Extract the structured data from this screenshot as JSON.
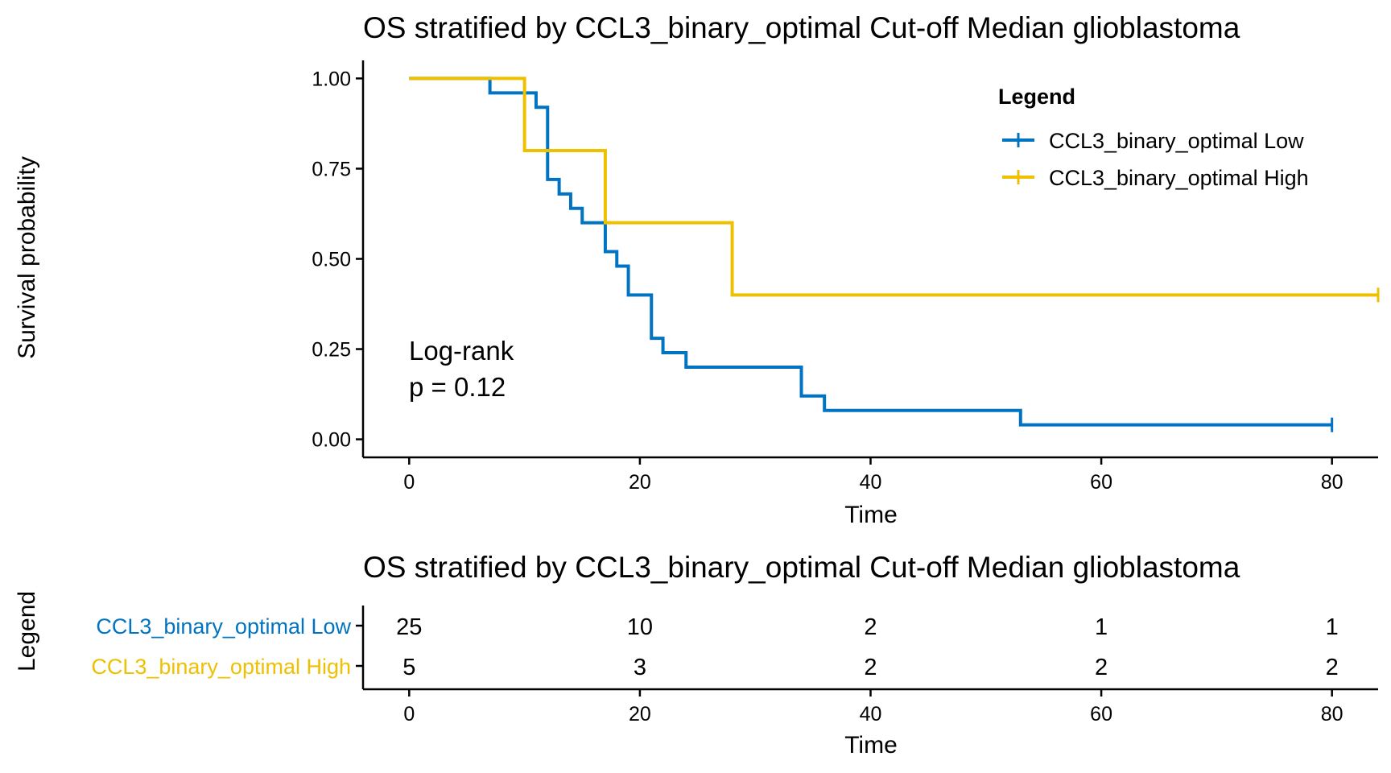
{
  "chart_data": [
    {
      "type": "line",
      "subtype": "kaplan-meier",
      "title": "OS stratified by CCL3_binary_optimal Cut-off Median glioblastoma",
      "xlabel": "Time",
      "ylabel": "Survival probability",
      "xlim": [
        -4,
        84
      ],
      "ylim": [
        -0.05,
        1.05
      ],
      "xticks": [
        0,
        20,
        40,
        60,
        80
      ],
      "yticks": [
        0,
        0.25,
        0.5,
        0.75,
        1.0
      ],
      "ytick_labels": [
        "0.00",
        "0.25",
        "0.50",
        "0.75",
        "1.00"
      ],
      "grid": false,
      "legend": {
        "title": "Legend",
        "placement": "top-right"
      },
      "annotation": [
        "Log-rank",
        "p = 0.12"
      ],
      "series": [
        {
          "name": "CCL3_binary_optimal Low",
          "color": "#0073C2",
          "steps": [
            [
              0,
              1.0
            ],
            [
              7,
              0.96
            ],
            [
              11,
              0.92
            ],
            [
              12,
              0.8
            ],
            [
              12,
              0.72
            ],
            [
              13,
              0.68
            ],
            [
              14,
              0.64
            ],
            [
              15,
              0.6
            ],
            [
              17,
              0.56
            ],
            [
              17,
              0.52
            ],
            [
              18,
              0.48
            ],
            [
              19,
              0.4
            ],
            [
              21,
              0.28
            ],
            [
              22,
              0.24
            ],
            [
              24,
              0.2
            ],
            [
              34,
              0.12
            ],
            [
              36,
              0.08
            ],
            [
              53,
              0.04
            ],
            [
              80,
              0.04
            ]
          ],
          "censor": [
            [
              80,
              0.04
            ]
          ]
        },
        {
          "name": "CCL3_binary_optimal High",
          "color": "#EFC000",
          "steps": [
            [
              0,
              1.0
            ],
            [
              10,
              0.8
            ],
            [
              17,
              0.6
            ],
            [
              28,
              0.4
            ],
            [
              84,
              0.4
            ]
          ],
          "censor": [
            [
              84,
              0.4
            ]
          ]
        }
      ]
    },
    {
      "type": "table",
      "title": "OS stratified by CCL3_binary_optimal Cut-off Median glioblastoma",
      "xlabel": "Time",
      "ylabel": "Legend",
      "xlim": [
        -4,
        84
      ],
      "xticks": [
        0,
        20,
        40,
        60,
        80
      ],
      "rows": [
        {
          "name": "CCL3_binary_optimal Low",
          "color": "#0073C2",
          "values": [
            "25",
            "10",
            "2",
            "1",
            "1"
          ]
        },
        {
          "name": "CCL3_binary_optimal High",
          "color": "#EFC000",
          "values": [
            "5",
            "3",
            "2",
            "2",
            "2"
          ]
        }
      ]
    }
  ]
}
